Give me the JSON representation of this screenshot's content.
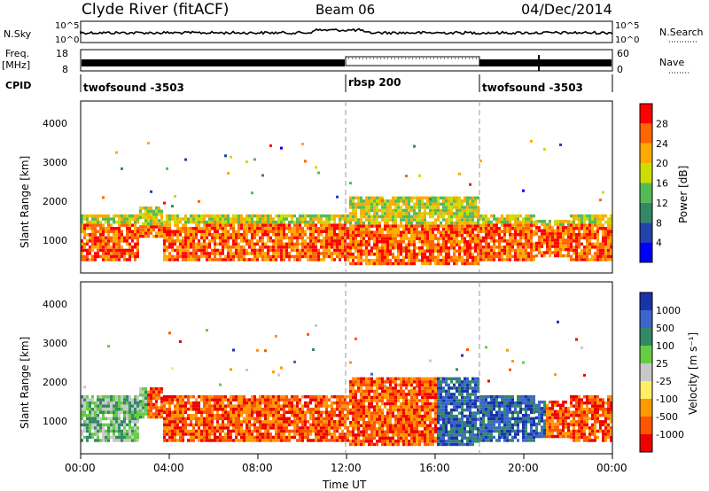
{
  "header": {
    "station": "Clyde River (fitACF)",
    "beam": "Beam 06",
    "date": "04/Dec/2014"
  },
  "panels": {
    "nsky_label": "N.Sky",
    "nsky_ticks": [
      "10^5",
      "10^0"
    ],
    "nsearch_label": "N.Search",
    "nsearch_ticks": [
      "10^5",
      "10^0"
    ],
    "freq_label": "Freq.",
    "freq_unit": "[MHz]",
    "freq_ticks": [
      "18",
      "8"
    ],
    "nave_label": "Nave",
    "nave_ticks": [
      "60",
      "0"
    ],
    "cpid_label": "CPID",
    "cpid_segments": [
      {
        "name": "twofsound -3503",
        "start_h": 0,
        "end_h": 12
      },
      {
        "name": "rbsp 200",
        "start_h": 12,
        "end_h": 18
      },
      {
        "name": "twofsound -3503",
        "start_h": 18,
        "end_h": 24
      }
    ]
  },
  "chart_data": [
    {
      "type": "heatmap",
      "title": "",
      "xlabel": "",
      "ylabel": "Slant Range [km]",
      "xlim": [
        0,
        24
      ],
      "ylim": [
        200,
        4600
      ],
      "yticks": [
        "1000",
        "2000",
        "3000",
        "4000"
      ],
      "colorbar_label": "Power [dB]",
      "colorbar_ticks": [
        "28",
        "24",
        "20",
        "16",
        "12",
        "8",
        "4"
      ],
      "colorbar_colors": [
        "#ff0000",
        "#ff6600",
        "#ffaa00",
        "#ccdd00",
        "#55bb55",
        "#338866",
        "#2244aa",
        "#0000ff"
      ]
    },
    {
      "type": "heatmap",
      "title": "",
      "xlabel": "Time UT",
      "ylabel": "Slant Range [km]",
      "xlim": [
        0,
        24
      ],
      "ylim": [
        200,
        4600
      ],
      "yticks": [
        "1000",
        "2000",
        "3000",
        "4000"
      ],
      "xticks": [
        "00:00",
        "04:00",
        "08:00",
        "12:00",
        "16:00",
        "20:00",
        "00:00"
      ],
      "colorbar_label": "Velocity [m s⁻¹]",
      "colorbar_ticks": [
        "1000",
        "500",
        "100",
        "25",
        "-25",
        "-100",
        "-500",
        "-1000"
      ],
      "colorbar_colors": [
        "#1a33aa",
        "#3a66cc",
        "#338866",
        "#66cc44",
        "#c8c8c8",
        "#ffee66",
        "#ff9900",
        "#ff5500",
        "#ee0000"
      ]
    }
  ]
}
